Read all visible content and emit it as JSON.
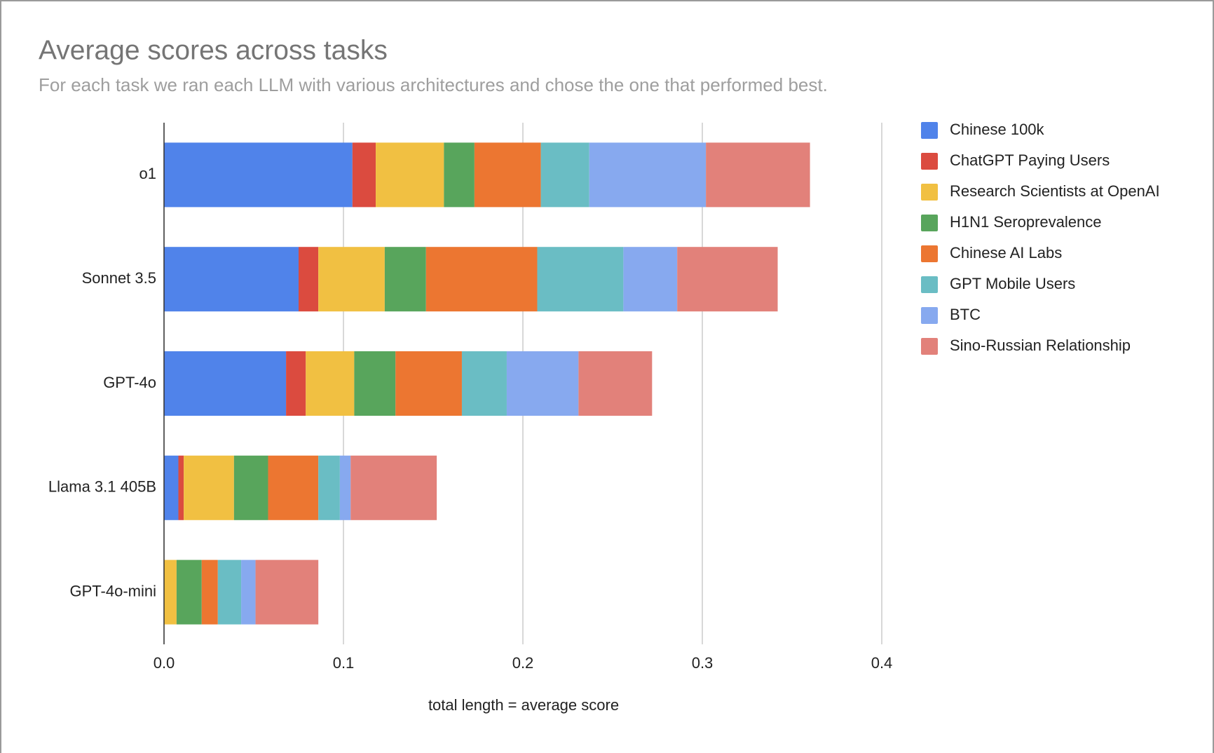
{
  "chart_data": {
    "type": "stacked_bar_horizontal",
    "title": "Average scores across tasks",
    "subtitle": "For each task we ran each LLM with various architectures and chose the one that performed best.",
    "x_label": "total length = average score",
    "categories": [
      "o1",
      "Sonnet 3.5",
      "GPT-4o",
      "Llama 3.1 405B",
      "GPT-4o-mini"
    ],
    "series": [
      {
        "name": "Chinese 100k",
        "color": "#5083ea",
        "values": [
          0.105,
          0.075,
          0.068,
          0.008,
          0
        ]
      },
      {
        "name": "ChatGPT Paying Users",
        "color": "#db4b3f",
        "values": [
          0.013,
          0.011,
          0.011,
          0.003,
          0
        ]
      },
      {
        "name": "Research Scientists at OpenAI",
        "color": "#f1c042",
        "values": [
          0.038,
          0.037,
          0.027,
          0.028,
          0.007
        ]
      },
      {
        "name": "H1N1 Seroprevalence",
        "color": "#58a55c",
        "values": [
          0.017,
          0.023,
          0.023,
          0.019,
          0.014
        ]
      },
      {
        "name": "Chinese AI Labs",
        "color": "#ec7631",
        "values": [
          0.037,
          0.062,
          0.037,
          0.028,
          0.009
        ]
      },
      {
        "name": "GPT Mobile Users",
        "color": "#6abdc4",
        "values": [
          0.027,
          0.048,
          0.025,
          0.012,
          0.013
        ]
      },
      {
        "name": "BTC",
        "color": "#87a9ef",
        "values": [
          0.065,
          0.03,
          0.04,
          0.006,
          0.008
        ]
      },
      {
        "name": "Sino-Russian Relationship",
        "color": "#e2817a",
        "values": [
          0.058,
          0.056,
          0.041,
          0.048,
          0.035
        ]
      }
    ],
    "xlim": [
      0,
      0.4
    ],
    "xticks": [
      {
        "value": 0,
        "label": "0.0"
      },
      0.1,
      0.2,
      0.3,
      0.4
    ],
    "grid": true,
    "legend": "right"
  }
}
